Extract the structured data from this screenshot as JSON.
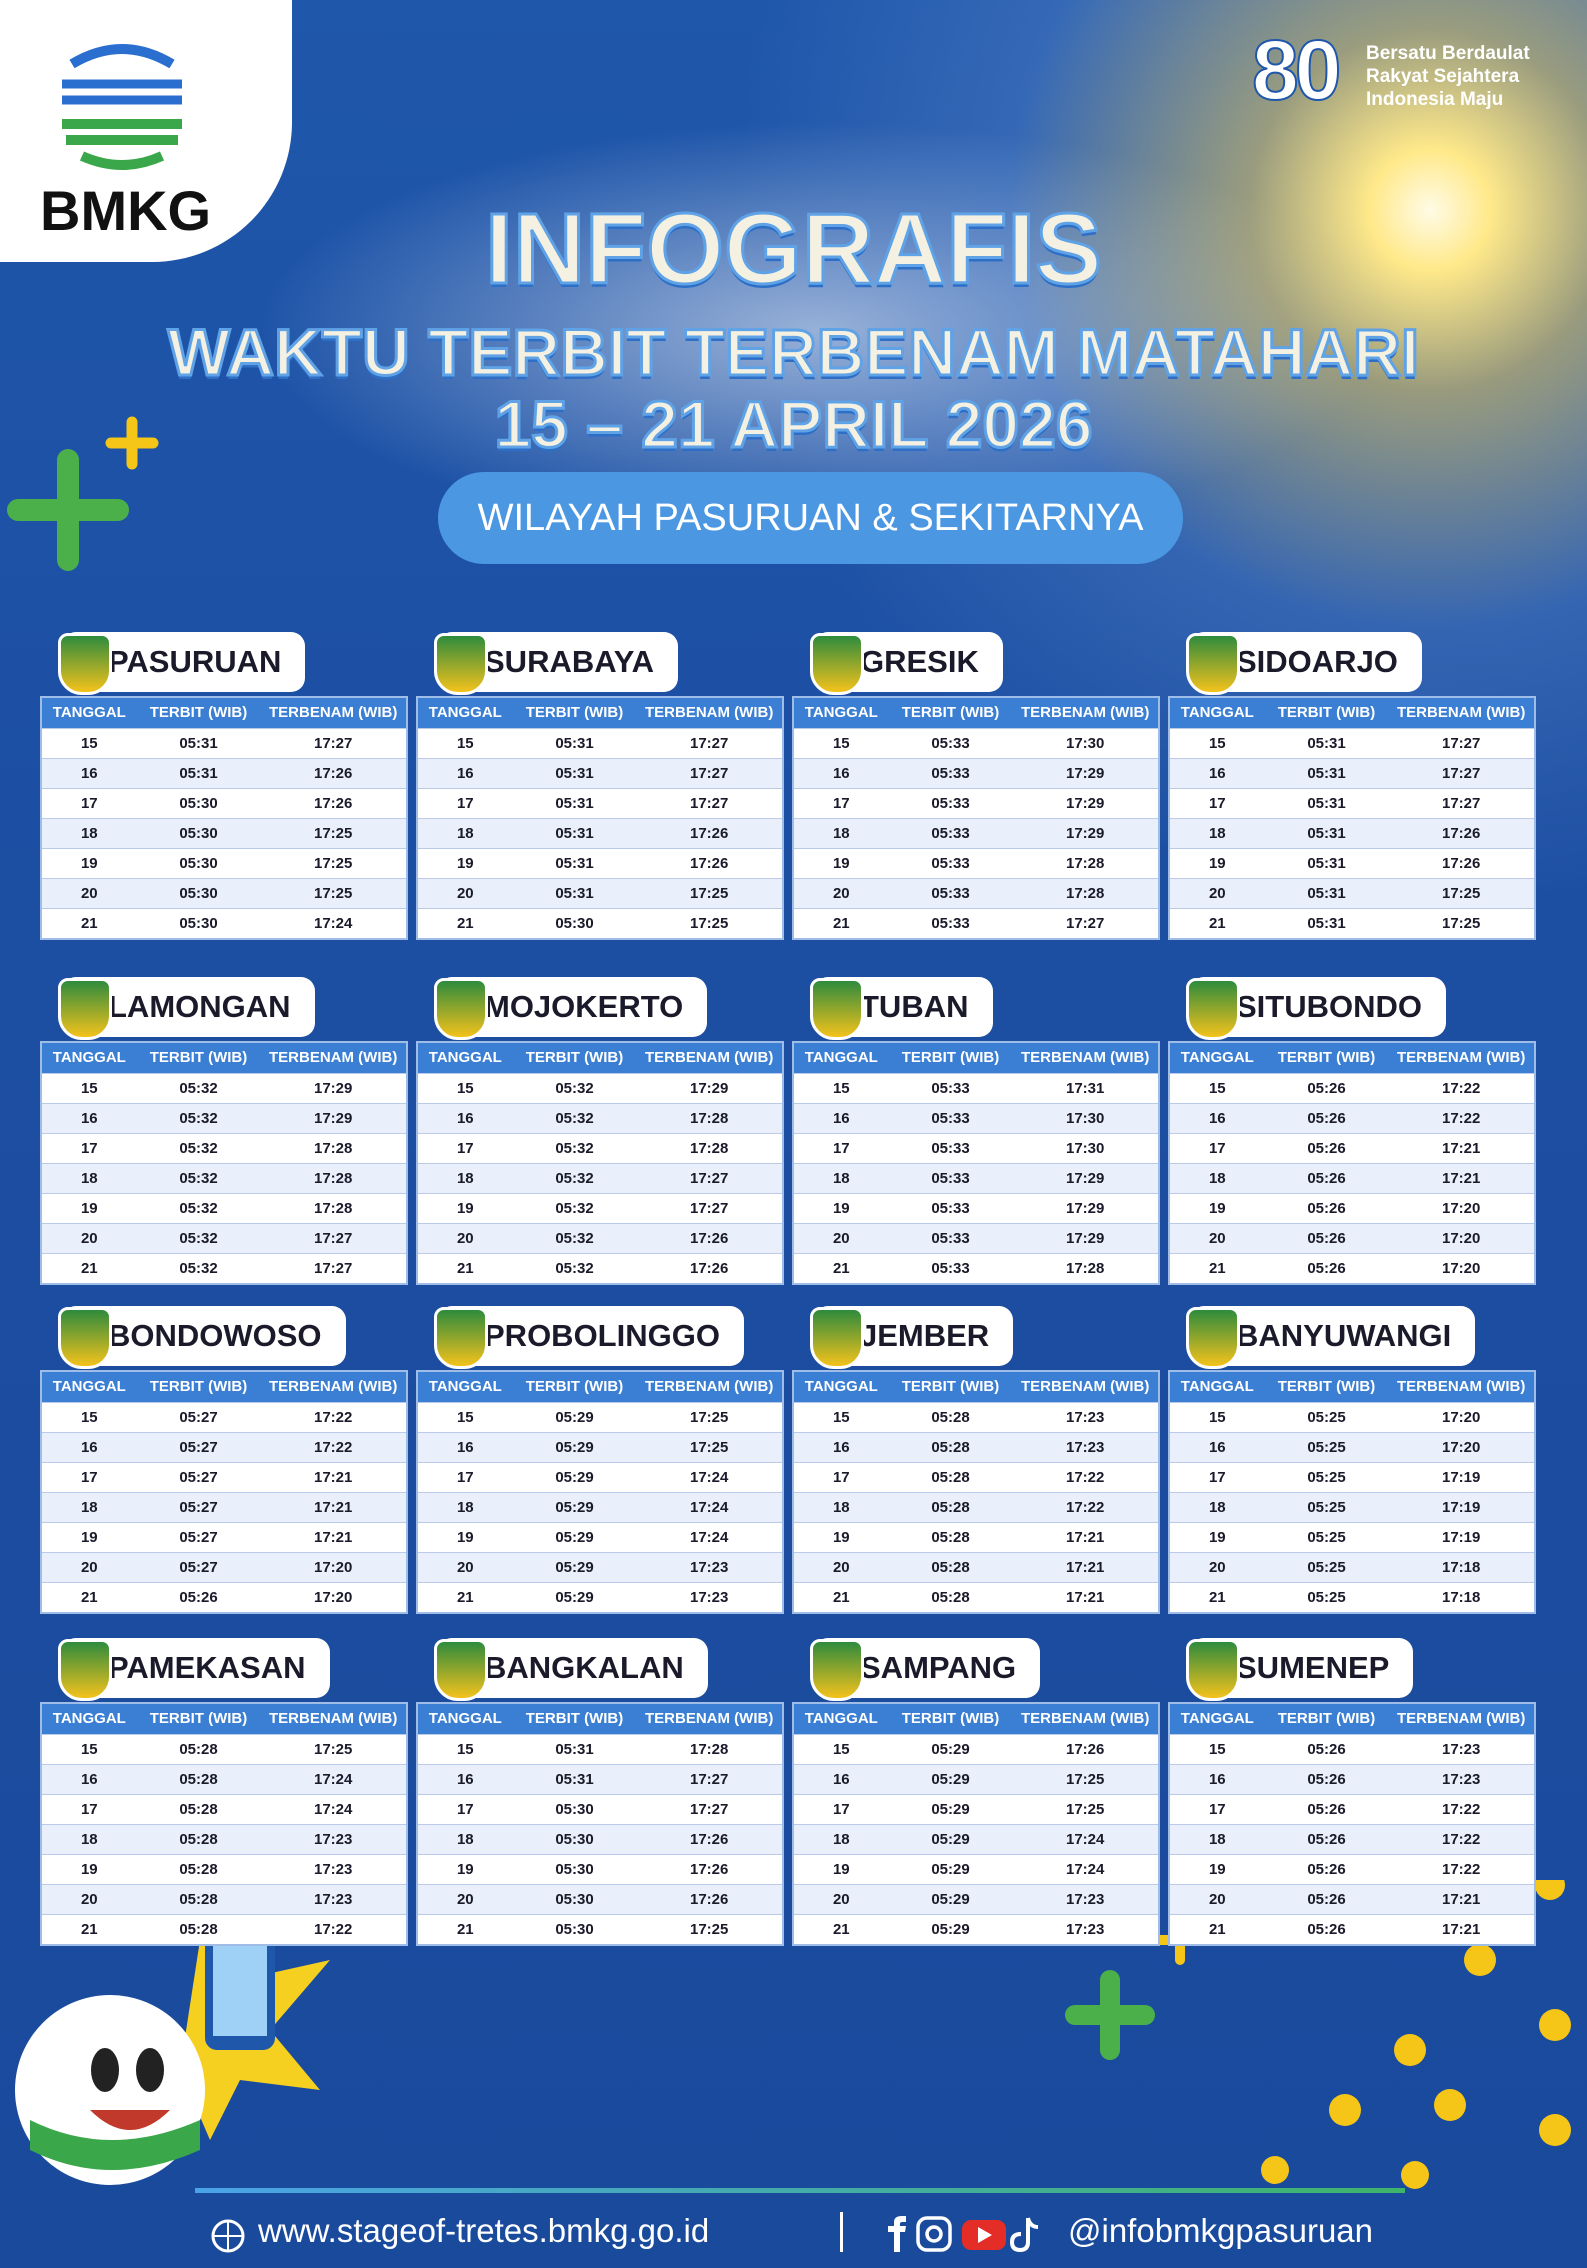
{
  "logo": {
    "text": "BMKG"
  },
  "badge": {
    "number": "80",
    "lines": [
      "Bersatu Berdaulat",
      "Rakyat Sejahtera",
      "Indonesia Maju"
    ]
  },
  "header": {
    "title": "INFOGRAFIS",
    "subtitle": "WAKTU TERBIT TERBENAM MATAHARI",
    "date": "15 – 21 APRIL 2026",
    "region": "WILAYAH PASURUAN & SEKITARNYA"
  },
  "tables": [
    {
      "name": "PASURUAN",
      "columns": [
        "TANGGAL",
        "TERBIT (WIB)",
        "TERBENAM (WIB)"
      ],
      "rows": [
        [
          "15",
          "05:31",
          "17:27"
        ],
        [
          "16",
          "05:31",
          "17:26"
        ],
        [
          "17",
          "05:30",
          "17:26"
        ],
        [
          "18",
          "05:30",
          "17:25"
        ],
        [
          "19",
          "05:30",
          "17:25"
        ],
        [
          "20",
          "05:30",
          "17:25"
        ],
        [
          "21",
          "05:30",
          "17:24"
        ]
      ]
    },
    {
      "name": "SURABAYA",
      "columns": [
        "TANGGAL",
        "TERBIT (WIB)",
        "TERBENAM (WIB)"
      ],
      "rows": [
        [
          "15",
          "05:31",
          "17:27"
        ],
        [
          "16",
          "05:31",
          "17:27"
        ],
        [
          "17",
          "05:31",
          "17:27"
        ],
        [
          "18",
          "05:31",
          "17:26"
        ],
        [
          "19",
          "05:31",
          "17:26"
        ],
        [
          "20",
          "05:31",
          "17:25"
        ],
        [
          "21",
          "05:30",
          "17:25"
        ]
      ]
    },
    {
      "name": "GRESIK",
      "columns": [
        "TANGGAL",
        "TERBIT (WIB)",
        "TERBENAM (WIB)"
      ],
      "rows": [
        [
          "15",
          "05:33",
          "17:30"
        ],
        [
          "16",
          "05:33",
          "17:29"
        ],
        [
          "17",
          "05:33",
          "17:29"
        ],
        [
          "18",
          "05:33",
          "17:29"
        ],
        [
          "19",
          "05:33",
          "17:28"
        ],
        [
          "20",
          "05:33",
          "17:28"
        ],
        [
          "21",
          "05:33",
          "17:27"
        ]
      ]
    },
    {
      "name": "SIDOARJO",
      "columns": [
        "TANGGAL",
        "TERBIT (WIB)",
        "TERBENAM (WIB)"
      ],
      "rows": [
        [
          "15",
          "05:31",
          "17:27"
        ],
        [
          "16",
          "05:31",
          "17:27"
        ],
        [
          "17",
          "05:31",
          "17:27"
        ],
        [
          "18",
          "05:31",
          "17:26"
        ],
        [
          "19",
          "05:31",
          "17:26"
        ],
        [
          "20",
          "05:31",
          "17:25"
        ],
        [
          "21",
          "05:31",
          "17:25"
        ]
      ]
    },
    {
      "name": "LAMONGAN",
      "columns": [
        "TANGGAL",
        "TERBIT (WIB)",
        "TERBENAM (WIB)"
      ],
      "rows": [
        [
          "15",
          "05:32",
          "17:29"
        ],
        [
          "16",
          "05:32",
          "17:29"
        ],
        [
          "17",
          "05:32",
          "17:28"
        ],
        [
          "18",
          "05:32",
          "17:28"
        ],
        [
          "19",
          "05:32",
          "17:28"
        ],
        [
          "20",
          "05:32",
          "17:27"
        ],
        [
          "21",
          "05:32",
          "17:27"
        ]
      ]
    },
    {
      "name": "MOJOKERTO",
      "columns": [
        "TANGGAL",
        "TERBIT (WIB)",
        "TERBENAM (WIB)"
      ],
      "rows": [
        [
          "15",
          "05:32",
          "17:29"
        ],
        [
          "16",
          "05:32",
          "17:28"
        ],
        [
          "17",
          "05:32",
          "17:28"
        ],
        [
          "18",
          "05:32",
          "17:27"
        ],
        [
          "19",
          "05:32",
          "17:27"
        ],
        [
          "20",
          "05:32",
          "17:26"
        ],
        [
          "21",
          "05:32",
          "17:26"
        ]
      ]
    },
    {
      "name": "TUBAN",
      "columns": [
        "TANGGAL",
        "TERBIT (WIB)",
        "TERBENAM (WIB)"
      ],
      "rows": [
        [
          "15",
          "05:33",
          "17:31"
        ],
        [
          "16",
          "05:33",
          "17:30"
        ],
        [
          "17",
          "05:33",
          "17:30"
        ],
        [
          "18",
          "05:33",
          "17:29"
        ],
        [
          "19",
          "05:33",
          "17:29"
        ],
        [
          "20",
          "05:33",
          "17:29"
        ],
        [
          "21",
          "05:33",
          "17:28"
        ]
      ]
    },
    {
      "name": "SITUBONDO",
      "columns": [
        "TANGGAL",
        "TERBIT (WIB)",
        "TERBENAM (WIB)"
      ],
      "rows": [
        [
          "15",
          "05:26",
          "17:22"
        ],
        [
          "16",
          "05:26",
          "17:22"
        ],
        [
          "17",
          "05:26",
          "17:21"
        ],
        [
          "18",
          "05:26",
          "17:21"
        ],
        [
          "19",
          "05:26",
          "17:20"
        ],
        [
          "20",
          "05:26",
          "17:20"
        ],
        [
          "21",
          "05:26",
          "17:20"
        ]
      ]
    },
    {
      "name": "BONDOWOSO",
      "columns": [
        "TANGGAL",
        "TERBIT (WIB)",
        "TERBENAM (WIB)"
      ],
      "rows": [
        [
          "15",
          "05:27",
          "17:22"
        ],
        [
          "16",
          "05:27",
          "17:22"
        ],
        [
          "17",
          "05:27",
          "17:21"
        ],
        [
          "18",
          "05:27",
          "17:21"
        ],
        [
          "19",
          "05:27",
          "17:21"
        ],
        [
          "20",
          "05:27",
          "17:20"
        ],
        [
          "21",
          "05:26",
          "17:20"
        ]
      ]
    },
    {
      "name": "PROBOLINGGO",
      "columns": [
        "TANGGAL",
        "TERBIT (WIB)",
        "TERBENAM (WIB)"
      ],
      "rows": [
        [
          "15",
          "05:29",
          "17:25"
        ],
        [
          "16",
          "05:29",
          "17:25"
        ],
        [
          "17",
          "05:29",
          "17:24"
        ],
        [
          "18",
          "05:29",
          "17:24"
        ],
        [
          "19",
          "05:29",
          "17:24"
        ],
        [
          "20",
          "05:29",
          "17:23"
        ],
        [
          "21",
          "05:29",
          "17:23"
        ]
      ]
    },
    {
      "name": "JEMBER",
      "columns": [
        "TANGGAL",
        "TERBIT (WIB)",
        "TERBENAM (WIB)"
      ],
      "rows": [
        [
          "15",
          "05:28",
          "17:23"
        ],
        [
          "16",
          "05:28",
          "17:23"
        ],
        [
          "17",
          "05:28",
          "17:22"
        ],
        [
          "18",
          "05:28",
          "17:22"
        ],
        [
          "19",
          "05:28",
          "17:21"
        ],
        [
          "20",
          "05:28",
          "17:21"
        ],
        [
          "21",
          "05:28",
          "17:21"
        ]
      ]
    },
    {
      "name": "BANYUWANGI",
      "columns": [
        "TANGGAL",
        "TERBIT (WIB)",
        "TERBENAM (WIB)"
      ],
      "rows": [
        [
          "15",
          "05:25",
          "17:20"
        ],
        [
          "16",
          "05:25",
          "17:20"
        ],
        [
          "17",
          "05:25",
          "17:19"
        ],
        [
          "18",
          "05:25",
          "17:19"
        ],
        [
          "19",
          "05:25",
          "17:19"
        ],
        [
          "20",
          "05:25",
          "17:18"
        ],
        [
          "21",
          "05:25",
          "17:18"
        ]
      ]
    },
    {
      "name": "PAMEKASAN",
      "columns": [
        "TANGGAL",
        "TERBIT (WIB)",
        "TERBENAM (WIB)"
      ],
      "rows": [
        [
          "15",
          "05:28",
          "17:25"
        ],
        [
          "16",
          "05:28",
          "17:24"
        ],
        [
          "17",
          "05:28",
          "17:24"
        ],
        [
          "18",
          "05:28",
          "17:23"
        ],
        [
          "19",
          "05:28",
          "17:23"
        ],
        [
          "20",
          "05:28",
          "17:23"
        ],
        [
          "21",
          "05:28",
          "17:22"
        ]
      ]
    },
    {
      "name": "BANGKALAN",
      "columns": [
        "TANGGAL",
        "TERBIT (WIB)",
        "TERBENAM (WIB)"
      ],
      "rows": [
        [
          "15",
          "05:31",
          "17:28"
        ],
        [
          "16",
          "05:31",
          "17:27"
        ],
        [
          "17",
          "05:30",
          "17:27"
        ],
        [
          "18",
          "05:30",
          "17:26"
        ],
        [
          "19",
          "05:30",
          "17:26"
        ],
        [
          "20",
          "05:30",
          "17:26"
        ],
        [
          "21",
          "05:30",
          "17:25"
        ]
      ]
    },
    {
      "name": "SAMPANG",
      "columns": [
        "TANGGAL",
        "TERBIT (WIB)",
        "TERBENAM (WIB)"
      ],
      "rows": [
        [
          "15",
          "05:29",
          "17:26"
        ],
        [
          "16",
          "05:29",
          "17:25"
        ],
        [
          "17",
          "05:29",
          "17:25"
        ],
        [
          "18",
          "05:29",
          "17:24"
        ],
        [
          "19",
          "05:29",
          "17:24"
        ],
        [
          "20",
          "05:29",
          "17:23"
        ],
        [
          "21",
          "05:29",
          "17:23"
        ]
      ]
    },
    {
      "name": "SUMENEP",
      "columns": [
        "TANGGAL",
        "TERBIT (WIB)",
        "TERBENAM (WIB)"
      ],
      "rows": [
        [
          "15",
          "05:26",
          "17:23"
        ],
        [
          "16",
          "05:26",
          "17:23"
        ],
        [
          "17",
          "05:26",
          "17:22"
        ],
        [
          "18",
          "05:26",
          "17:22"
        ],
        [
          "19",
          "05:26",
          "17:22"
        ],
        [
          "20",
          "05:26",
          "17:21"
        ],
        [
          "21",
          "05:26",
          "17:21"
        ]
      ]
    }
  ],
  "footer": {
    "website": "www.stageof-tretes.bmkg.go.id",
    "social": "@infobmkgpasuruan"
  }
}
